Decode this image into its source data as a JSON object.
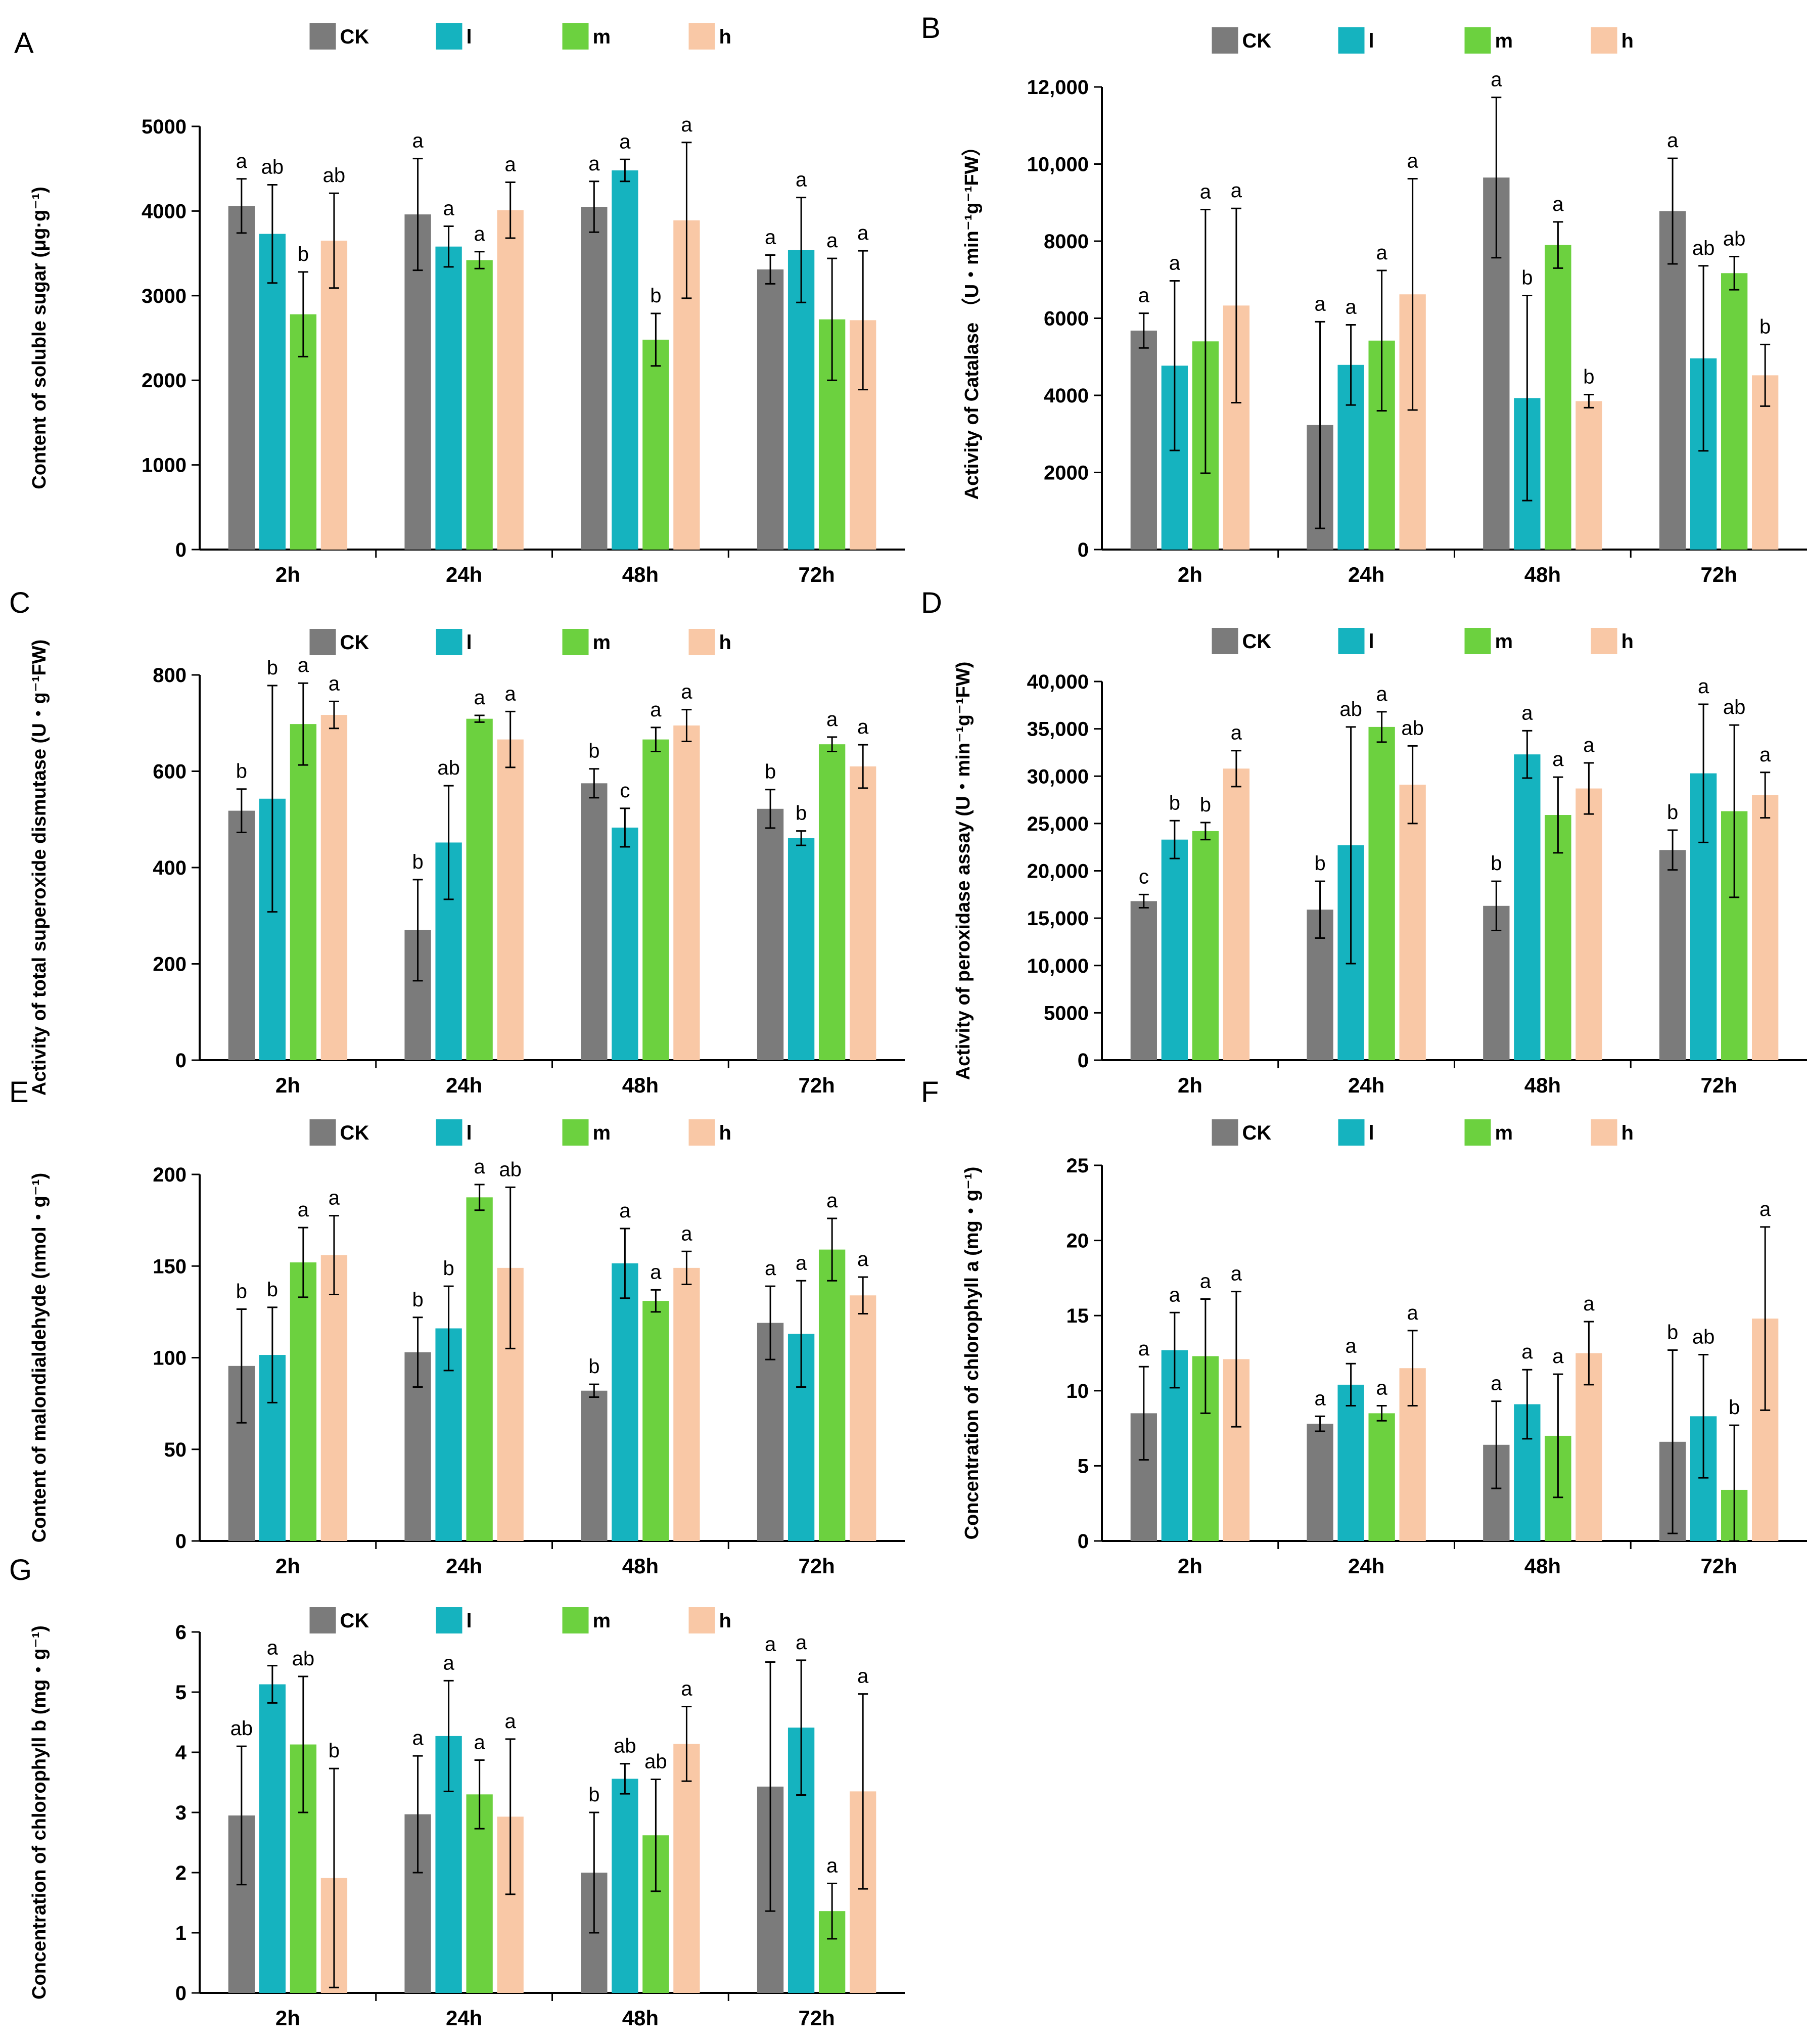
{
  "colors": {
    "CK": "#7b7b7b",
    "l": "#15b3bf",
    "m": "#6cd13f",
    "h": "#f9c8a6",
    "axis": "#000000",
    "error": "#000000"
  },
  "legend": [
    "CK",
    "l",
    "m",
    "h"
  ],
  "chart_data": [
    {
      "id": "A",
      "type": "bar",
      "panel_label": "A",
      "ylabel": "Content of soluble sugar (μg·g⁻¹)",
      "categories": [
        "2h",
        "24h",
        "48h",
        "72h"
      ],
      "ylim": [
        0,
        5000
      ],
      "yticks": [
        "0",
        "1000",
        "2000",
        "3000",
        "4000",
        "5000"
      ],
      "series": [
        {
          "name": "CK",
          "values": [
            4060,
            3960,
            4050,
            3310
          ],
          "errors": [
            320,
            660,
            300,
            170
          ],
          "letters": [
            "a",
            "a",
            "a",
            "a"
          ]
        },
        {
          "name": "l",
          "values": [
            3730,
            3580,
            4480,
            3540
          ],
          "errors": [
            580,
            240,
            130,
            620
          ],
          "letters": [
            "ab",
            "a",
            "a",
            "a"
          ]
        },
        {
          "name": "m",
          "values": [
            2780,
            3420,
            2480,
            2720
          ],
          "errors": [
            500,
            100,
            310,
            720
          ],
          "letters": [
            "b",
            "a",
            "b",
            "a"
          ]
        },
        {
          "name": "h",
          "values": [
            3650,
            4010,
            3890,
            2710
          ],
          "errors": [
            560,
            330,
            920,
            820
          ],
          "letters": [
            "ab",
            "a",
            "a",
            "a"
          ]
        }
      ]
    },
    {
      "id": "B",
      "type": "bar",
      "panel_label": "B",
      "ylabel": "Activity of Catalase （U・min⁻¹g⁻¹FW）",
      "categories": [
        "2h",
        "24h",
        "48h",
        "72h"
      ],
      "ylim": [
        0,
        12000
      ],
      "yticks": [
        "0",
        "2000",
        "4000",
        "6000",
        "8000",
        "10,000",
        "12,000"
      ],
      "series": [
        {
          "name": "CK",
          "values": [
            5680,
            3230,
            9650,
            8780
          ],
          "errors": [
            450,
            2680,
            2080,
            1370
          ],
          "letters": [
            "a",
            "a",
            "a",
            "a"
          ]
        },
        {
          "name": "l",
          "values": [
            4770,
            4790,
            3930,
            4960
          ],
          "errors": [
            2200,
            1040,
            2660,
            2400
          ],
          "letters": [
            "a",
            "a",
            "b",
            "ab"
          ]
        },
        {
          "name": "m",
          "values": [
            5400,
            5420,
            7900,
            7170
          ],
          "errors": [
            3420,
            1820,
            600,
            430
          ],
          "letters": [
            "a",
            "a",
            "a",
            "ab"
          ]
        },
        {
          "name": "h",
          "values": [
            6330,
            6620,
            3850,
            4520
          ],
          "errors": [
            2520,
            3000,
            170,
            800
          ],
          "letters": [
            "a",
            "a",
            "b",
            "b"
          ]
        }
      ]
    },
    {
      "id": "C",
      "type": "bar",
      "panel_label": "C",
      "ylabel": "Activity of total superoxide dismutase (U・g⁻¹FW)",
      "categories": [
        "2h",
        "24h",
        "48h",
        "72h"
      ],
      "ylim": [
        0,
        800
      ],
      "yticks": [
        "0",
        "200",
        "400",
        "600",
        "800"
      ],
      "series": [
        {
          "name": "CK",
          "values": [
            518,
            270,
            575,
            522
          ],
          "errors": [
            45,
            105,
            30,
            40
          ],
          "letters": [
            "b",
            "b",
            "b",
            "b"
          ]
        },
        {
          "name": "l",
          "values": [
            543,
            452,
            483,
            461
          ],
          "errors": [
            235,
            118,
            40,
            15
          ],
          "letters": [
            "b",
            "ab",
            "c",
            "b"
          ]
        },
        {
          "name": "m",
          "values": [
            698,
            709,
            666,
            656
          ],
          "errors": [
            85,
            7,
            25,
            15
          ],
          "letters": [
            "a",
            "a",
            "a",
            "a"
          ]
        },
        {
          "name": "h",
          "values": [
            717,
            666,
            695,
            610
          ],
          "errors": [
            28,
            58,
            33,
            45
          ],
          "letters": [
            "a",
            "a",
            "a",
            "a"
          ]
        }
      ]
    },
    {
      "id": "D",
      "type": "bar",
      "panel_label": "D",
      "ylabel": "Activity of peroxidase assay (U・min⁻¹g⁻¹FW)",
      "categories": [
        "2h",
        "24h",
        "48h",
        "72h"
      ],
      "ylim": [
        0,
        40000
      ],
      "yticks": [
        "0",
        "5000",
        "10,000",
        "15,000",
        "20,000",
        "25,000",
        "30,000",
        "35,000",
        "40,000"
      ],
      "series": [
        {
          "name": "CK",
          "values": [
            16800,
            15900,
            16300,
            22200
          ],
          "errors": [
            700,
            3000,
            2600,
            2100
          ],
          "letters": [
            "c",
            "b",
            "b",
            "b"
          ]
        },
        {
          "name": "l",
          "values": [
            23300,
            22700,
            32300,
            30300
          ],
          "errors": [
            2000,
            12500,
            2500,
            7300
          ],
          "letters": [
            "b",
            "ab",
            "a",
            "a"
          ]
        },
        {
          "name": "m",
          "values": [
            24200,
            35200,
            25900,
            26300
          ],
          "errors": [
            900,
            1600,
            4000,
            9100
          ],
          "letters": [
            "b",
            "a",
            "a",
            "ab"
          ]
        },
        {
          "name": "h",
          "values": [
            30800,
            29100,
            28700,
            28000
          ],
          "errors": [
            1900,
            4100,
            2700,
            2400
          ],
          "letters": [
            "a",
            "ab",
            "a",
            "a"
          ]
        }
      ]
    },
    {
      "id": "E",
      "type": "bar",
      "panel_label": "E",
      "ylabel": "Content of malondialdehyde (nmol・g⁻¹)",
      "categories": [
        "2h",
        "24h",
        "48h",
        "72h"
      ],
      "ylim": [
        0,
        200
      ],
      "yticks": [
        "0",
        "50",
        "100",
        "150",
        "200"
      ],
      "series": [
        {
          "name": "CK",
          "values": [
            95.5,
            103,
            82,
            119
          ],
          "errors": [
            31,
            19,
            3.5,
            20
          ],
          "letters": [
            "b",
            "b",
            "b",
            "a"
          ]
        },
        {
          "name": "l",
          "values": [
            101.5,
            116,
            151.5,
            113
          ],
          "errors": [
            26,
            23,
            19,
            29
          ],
          "letters": [
            "b",
            "b",
            "a",
            "a"
          ]
        },
        {
          "name": "m",
          "values": [
            152,
            187.5,
            131,
            159
          ],
          "errors": [
            19,
            7,
            6,
            17
          ],
          "letters": [
            "a",
            "a",
            "a",
            "a"
          ]
        },
        {
          "name": "h",
          "values": [
            156,
            149,
            149,
            134
          ],
          "errors": [
            21.5,
            44,
            9,
            10
          ],
          "letters": [
            "a",
            "ab",
            "a",
            "a"
          ]
        }
      ]
    },
    {
      "id": "F",
      "type": "bar",
      "panel_label": "F",
      "ylabel": "Concentration of chlorophyll a (mg・g⁻¹)",
      "categories": [
        "2h",
        "24h",
        "48h",
        "72h"
      ],
      "ylim": [
        0,
        25
      ],
      "yticks": [
        "0",
        "5",
        "10",
        "15",
        "20",
        "25"
      ],
      "series": [
        {
          "name": "CK",
          "values": [
            8.5,
            7.8,
            6.4,
            6.6
          ],
          "errors": [
            3.1,
            0.5,
            2.9,
            6.1
          ],
          "letters": [
            "a",
            "a",
            "a",
            "b"
          ]
        },
        {
          "name": "l",
          "values": [
            12.7,
            10.4,
            9.1,
            8.3
          ],
          "errors": [
            2.5,
            1.4,
            2.3,
            4.1
          ],
          "letters": [
            "a",
            "a",
            "a",
            "ab"
          ]
        },
        {
          "name": "m",
          "values": [
            12.3,
            8.5,
            7.0,
            3.4
          ],
          "errors": [
            3.8,
            0.5,
            4.1,
            4.3
          ],
          "letters": [
            "a",
            "a",
            "a",
            "b"
          ]
        },
        {
          "name": "h",
          "values": [
            12.1,
            11.5,
            12.5,
            14.8
          ],
          "errors": [
            4.5,
            2.5,
            2.1,
            6.1
          ],
          "letters": [
            "a",
            "a",
            "a",
            "a"
          ]
        }
      ]
    },
    {
      "id": "G",
      "type": "bar",
      "panel_label": "G",
      "ylabel": "Concentration of chlorophyll b (mg・g⁻¹)",
      "categories": [
        "2h",
        "24h",
        "48h",
        "72h"
      ],
      "ylim": [
        0,
        6
      ],
      "yticks": [
        "0",
        "1",
        "2",
        "3",
        "4",
        "5",
        "6"
      ],
      "series": [
        {
          "name": "CK",
          "values": [
            2.95,
            2.97,
            2.0,
            3.43
          ],
          "errors": [
            1.15,
            0.97,
            1.0,
            2.07
          ],
          "letters": [
            "ab",
            "a",
            "b",
            "a"
          ]
        },
        {
          "name": "l",
          "values": [
            5.13,
            4.27,
            3.56,
            4.41
          ],
          "errors": [
            0.31,
            0.92,
            0.25,
            1.12
          ],
          "letters": [
            "a",
            "a",
            "ab",
            "a"
          ]
        },
        {
          "name": "m",
          "values": [
            4.13,
            3.3,
            2.62,
            1.36
          ],
          "errors": [
            1.13,
            0.57,
            0.93,
            0.46
          ],
          "letters": [
            "ab",
            "a",
            "ab",
            "a"
          ]
        },
        {
          "name": "h",
          "values": [
            1.91,
            2.93,
            4.14,
            3.35
          ],
          "errors": [
            1.82,
            1.29,
            0.62,
            1.62
          ],
          "letters": [
            "b",
            "a",
            "a",
            "a"
          ]
        }
      ]
    }
  ]
}
